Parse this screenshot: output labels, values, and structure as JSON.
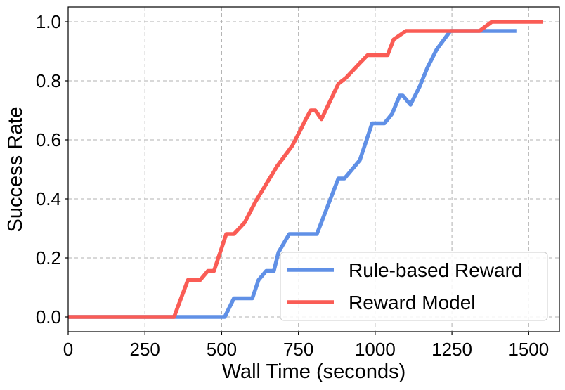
{
  "chart_data": {
    "type": "line",
    "xlabel": "Wall Time (seconds)",
    "ylabel": "Success Rate",
    "xlim": [
      0,
      1600
    ],
    "ylim": [
      -0.05,
      1.05
    ],
    "xticks": [
      0,
      250,
      500,
      750,
      1000,
      1250,
      1500
    ],
    "xtick_labels": [
      "0",
      "250",
      "500",
      "750",
      "1000",
      "1250",
      "1500"
    ],
    "yticks": [
      0.0,
      0.2,
      0.4,
      0.6,
      0.8,
      1.0
    ],
    "ytick_labels": [
      "0.0",
      "0.2",
      "0.4",
      "0.6",
      "0.8",
      "1.0"
    ],
    "grid": true,
    "legend_position": "lower-right",
    "series": [
      {
        "name": "Rule-based Reward",
        "color": "#6090e6",
        "x": [
          0,
          350,
          510,
          540,
          600,
          620,
          645,
          670,
          685,
          720,
          810,
          880,
          900,
          950,
          990,
          1030,
          1055,
          1080,
          1090,
          1115,
          1145,
          1170,
          1200,
          1245,
          1460
        ],
        "y": [
          0.0,
          0.0,
          0.0,
          0.063,
          0.063,
          0.125,
          0.156,
          0.156,
          0.219,
          0.281,
          0.281,
          0.469,
          0.469,
          0.531,
          0.656,
          0.656,
          0.688,
          0.75,
          0.75,
          0.719,
          0.781,
          0.844,
          0.906,
          0.969,
          0.969
        ]
      },
      {
        "name": "Reward Model",
        "color": "#fa5c55",
        "x": [
          0,
          345,
          390,
          430,
          455,
          475,
          515,
          540,
          575,
          610,
          680,
          730,
          760,
          775,
          790,
          805,
          825,
          880,
          905,
          950,
          975,
          1010,
          1040,
          1060,
          1100,
          1250,
          1340,
          1380,
          1545
        ],
        "y": [
          0.0,
          0.0,
          0.125,
          0.125,
          0.156,
          0.156,
          0.281,
          0.281,
          0.32,
          0.39,
          0.51,
          0.58,
          0.64,
          0.672,
          0.7,
          0.7,
          0.67,
          0.79,
          0.81,
          0.86,
          0.887,
          0.887,
          0.887,
          0.94,
          0.969,
          0.969,
          0.969,
          1.0,
          1.0
        ]
      }
    ]
  }
}
